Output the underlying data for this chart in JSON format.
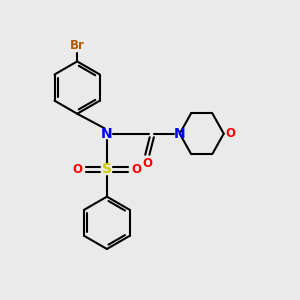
{
  "bg_color": "#eaeaea",
  "bond_color": "#000000",
  "bond_width": 1.5,
  "atom_colors": {
    "Br": "#b35900",
    "N": "#0000ff",
    "S": "#cccc00",
    "O": "#ff0000"
  },
  "font_size": 8.5,
  "canvas_xlim": [
    0,
    10
  ],
  "canvas_ylim": [
    0,
    10
  ]
}
